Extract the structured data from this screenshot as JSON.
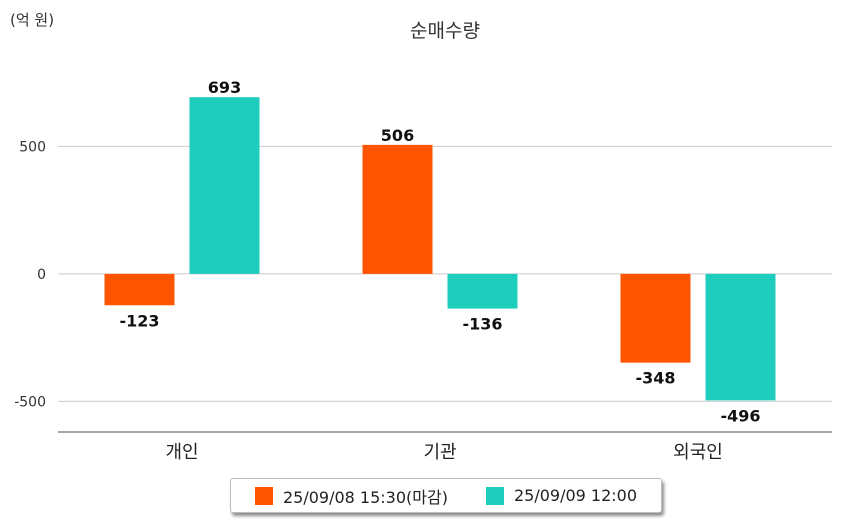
{
  "unit_label": "(억 원)",
  "chart_data": {
    "type": "bar",
    "title": "순매수량",
    "xlabel": "",
    "ylabel": "",
    "categories": [
      "개인",
      "기관",
      "외국인"
    ],
    "series": [
      {
        "name": "25/09/08 15:30(마감)",
        "color": "#ff5500",
        "values": [
          -123,
          506,
          -348
        ]
      },
      {
        "name": "25/09/09 12:00",
        "color": "#1ecdbc",
        "values": [
          693,
          -136,
          -496
        ]
      }
    ],
    "ylim": [
      -620,
      780
    ],
    "yticks": [
      500,
      0,
      -500
    ],
    "grid": true,
    "legend_position": "bottom"
  }
}
